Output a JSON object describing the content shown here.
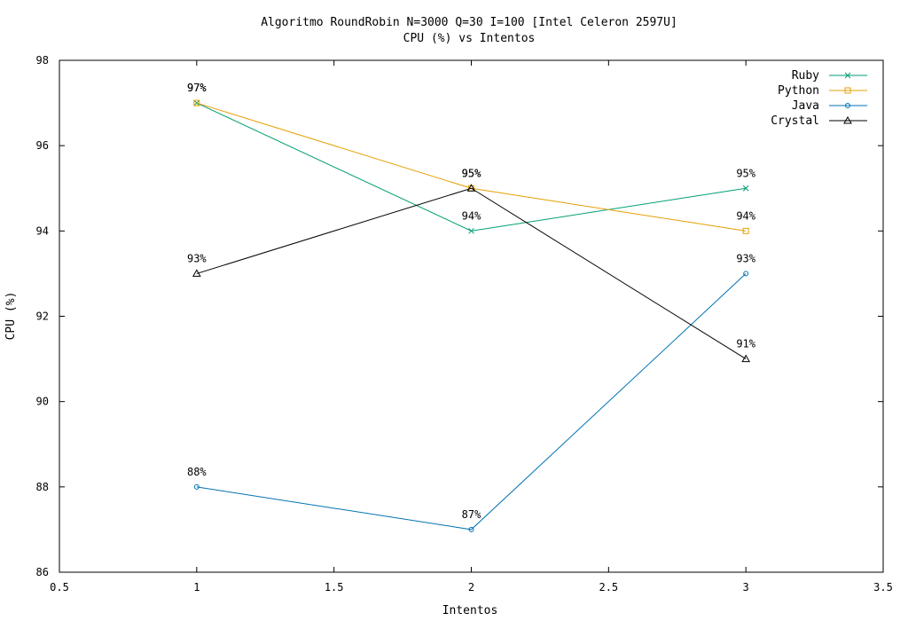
{
  "chart_data": {
    "type": "line",
    "title": "Algoritmo RoundRobin N=3000 Q=30 I=100 [Intel Celeron 2597U]",
    "subtitle": "CPU (%) vs Intentos",
    "xlabel": "Intentos",
    "ylabel": "CPU (%)",
    "xlim": [
      0.5,
      3.5
    ],
    "ylim": [
      86,
      98
    ],
    "xticks": [
      "0.5",
      "1",
      "1.5",
      "2",
      "2.5",
      "3",
      "3.5"
    ],
    "yticks": [
      "86",
      "88",
      "90",
      "92",
      "94",
      "96",
      "98"
    ],
    "x": [
      1,
      2,
      3
    ],
    "grid": false,
    "legend_position": "top-right",
    "series": [
      {
        "name": "Ruby",
        "values": [
          97,
          94,
          95
        ],
        "labels": [
          "97%",
          "94%",
          "95%"
        ],
        "color": "#009e73",
        "marker": "x"
      },
      {
        "name": "Python",
        "values": [
          97,
          95,
          94
        ],
        "labels": [
          "97%",
          "95%",
          "94%"
        ],
        "color": "#e69f00",
        "marker": "square"
      },
      {
        "name": "Java",
        "values": [
          88,
          87,
          93
        ],
        "labels": [
          "88%",
          "87%",
          "93%"
        ],
        "color": "#0072b2",
        "marker": "circle"
      },
      {
        "name": "Crystal",
        "values": [
          93,
          95,
          91
        ],
        "labels": [
          "93%",
          "95%",
          "91%"
        ],
        "color": "#000000",
        "marker": "triangle"
      }
    ]
  }
}
